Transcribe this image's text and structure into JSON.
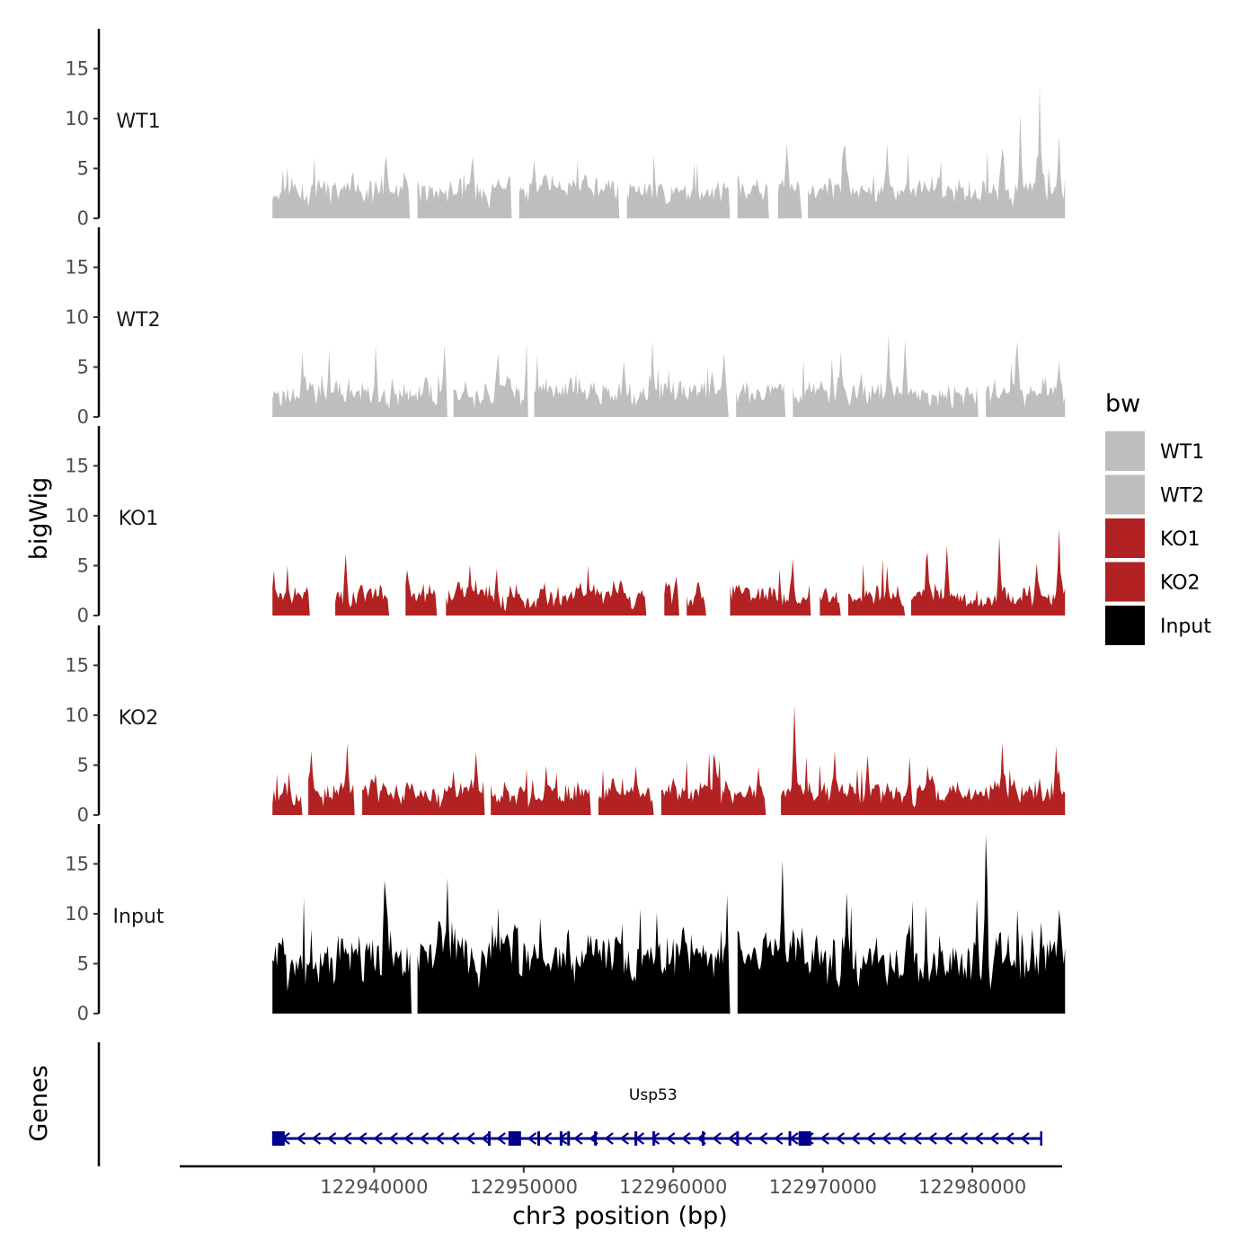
{
  "chart_data": {
    "type": "area",
    "ylabel": "bigWig",
    "xlabel": "chr3 position (bp)",
    "genes_label": "Genes",
    "x_range": [
      122927000,
      122986000
    ],
    "data_x_range": [
      122933200,
      122986200
    ],
    "x_ticks": [
      {
        "value": 122940000,
        "label": "122940000"
      },
      {
        "value": 122950000,
        "label": "122950000"
      },
      {
        "value": 122960000,
        "label": "122960000"
      },
      {
        "value": 122970000,
        "label": "122970000"
      },
      {
        "value": 122980000,
        "label": "122980000"
      }
    ],
    "y_range": [
      0,
      19
    ],
    "y_ticks": [
      {
        "value": 0,
        "label": "0"
      },
      {
        "value": 5,
        "label": "5"
      },
      {
        "value": 10,
        "label": "10"
      },
      {
        "value": 15,
        "label": "15"
      }
    ],
    "legend": {
      "title": "bw",
      "position": "right",
      "entries": [
        {
          "label": "WT1",
          "color": "#bebebe"
        },
        {
          "label": "WT2",
          "color": "#bebebe"
        },
        {
          "label": "KO1",
          "color": "#b22222"
        },
        {
          "label": "KO2",
          "color": "#b22222"
        },
        {
          "label": "Input",
          "color": "#000000"
        }
      ]
    },
    "series": [
      {
        "name": "WT1",
        "color": "#bebebe",
        "base": 2.5,
        "noise": 2.2,
        "seed": 11,
        "peaks": [
          [
            122940800,
            6.3
          ],
          [
            122946600,
            6.2
          ],
          [
            122967600,
            7.5
          ],
          [
            122971500,
            7.2
          ],
          [
            122974300,
            7.5
          ],
          [
            122982000,
            7.0
          ],
          [
            122983200,
            10.5
          ],
          [
            122984500,
            13.2
          ],
          [
            122985800,
            8.3
          ]
        ],
        "gaps": [
          [
            122942400,
            122942800
          ],
          [
            122949200,
            122949600
          ],
          [
            122956400,
            122956800
          ],
          [
            122963800,
            122964200
          ],
          [
            122966400,
            122966900
          ],
          [
            122968600,
            122968900
          ]
        ]
      },
      {
        "name": "WT2",
        "color": "#bebebe",
        "base": 2.2,
        "noise": 2.2,
        "seed": 23,
        "peaks": [
          [
            122935200,
            6.5
          ],
          [
            122940100,
            7.2
          ],
          [
            122944700,
            7.2
          ],
          [
            122948200,
            5.0
          ],
          [
            122950200,
            7.4
          ],
          [
            122956700,
            5.6
          ],
          [
            122963400,
            6.5
          ],
          [
            122971200,
            6.6
          ],
          [
            122974400,
            8.4
          ],
          [
            122975500,
            7.8
          ],
          [
            122983000,
            7.6
          ],
          [
            122985800,
            5.6
          ]
        ],
        "gaps": [
          [
            122944900,
            122945200
          ],
          [
            122950300,
            122950600
          ],
          [
            122963700,
            122964100
          ],
          [
            122967500,
            122967900
          ],
          [
            122980400,
            122980800
          ]
        ]
      },
      {
        "name": "KO1",
        "color": "#b22222",
        "base": 1.8,
        "noise": 1.9,
        "seed": 37,
        "peaks": [
          [
            122933300,
            4.5
          ],
          [
            122938100,
            6.2
          ],
          [
            122942200,
            4.6
          ],
          [
            122946400,
            5.1
          ],
          [
            122948200,
            4.7
          ],
          [
            122960200,
            3.9
          ],
          [
            122968000,
            5.7
          ],
          [
            122977000,
            6.3
          ],
          [
            122978300,
            7.0
          ],
          [
            122981800,
            7.9
          ],
          [
            122984300,
            5.2
          ],
          [
            122985800,
            8.8
          ]
        ],
        "gaps": [
          [
            122935700,
            122937300
          ],
          [
            122941000,
            122942000
          ],
          [
            122944200,
            122944700
          ],
          [
            122958200,
            122959300
          ],
          [
            122960400,
            122960800
          ],
          [
            122962200,
            122963700
          ],
          [
            122969200,
            122969700
          ],
          [
            122971200,
            122971600
          ],
          [
            122975500,
            122975800
          ]
        ]
      },
      {
        "name": "KO2",
        "color": "#b22222",
        "base": 2.0,
        "noise": 2.0,
        "seed": 53,
        "peaks": [
          [
            122935800,
            6.4
          ],
          [
            122938200,
            7.2
          ],
          [
            122946800,
            6.3
          ],
          [
            122951500,
            5.0
          ],
          [
            122957500,
            4.9
          ],
          [
            122962800,
            5.5
          ],
          [
            122965700,
            4.8
          ],
          [
            122968100,
            11.0
          ],
          [
            122970800,
            6.4
          ],
          [
            122973000,
            6.0
          ],
          [
            122977000,
            4.9
          ],
          [
            122982000,
            7.3
          ],
          [
            122985600,
            6.9
          ]
        ],
        "gaps": [
          [
            122935200,
            122935500
          ],
          [
            122938700,
            122939100
          ],
          [
            122947400,
            122947700
          ],
          [
            122954500,
            122954900
          ],
          [
            122958700,
            122959100
          ],
          [
            122966200,
            122967100
          ]
        ]
      },
      {
        "name": "Input",
        "color": "#000000",
        "base": 5.0,
        "noise": 4.2,
        "seed": 71,
        "peaks": [
          [
            122940700,
            13.4
          ],
          [
            122944400,
            9.2
          ],
          [
            122944900,
            13.6
          ],
          [
            122949400,
            9.0
          ],
          [
            122953000,
            8.5
          ],
          [
            122960700,
            8.7
          ],
          [
            122967300,
            15.4
          ],
          [
            122971600,
            9.0
          ],
          [
            122975800,
            9.0
          ],
          [
            122980300,
            11.5
          ],
          [
            122980900,
            17.9
          ],
          [
            122984600,
            9.2
          ],
          [
            122985800,
            10.4
          ]
        ],
        "gaps": [
          [
            122942500,
            122942800
          ],
          [
            122963800,
            122964200
          ]
        ]
      }
    ],
    "gene_track": {
      "name": "Usp53",
      "color": "#00008b",
      "start": 122933300,
      "end": 122984600,
      "strand": "-",
      "exons": [
        122933600,
        122949400,
        122968800
      ],
      "introns_marks": [
        122947700,
        122951000,
        122952500,
        122953000,
        122954800,
        122957500,
        122958700,
        122962000,
        122964300,
        122967800
      ]
    }
  }
}
